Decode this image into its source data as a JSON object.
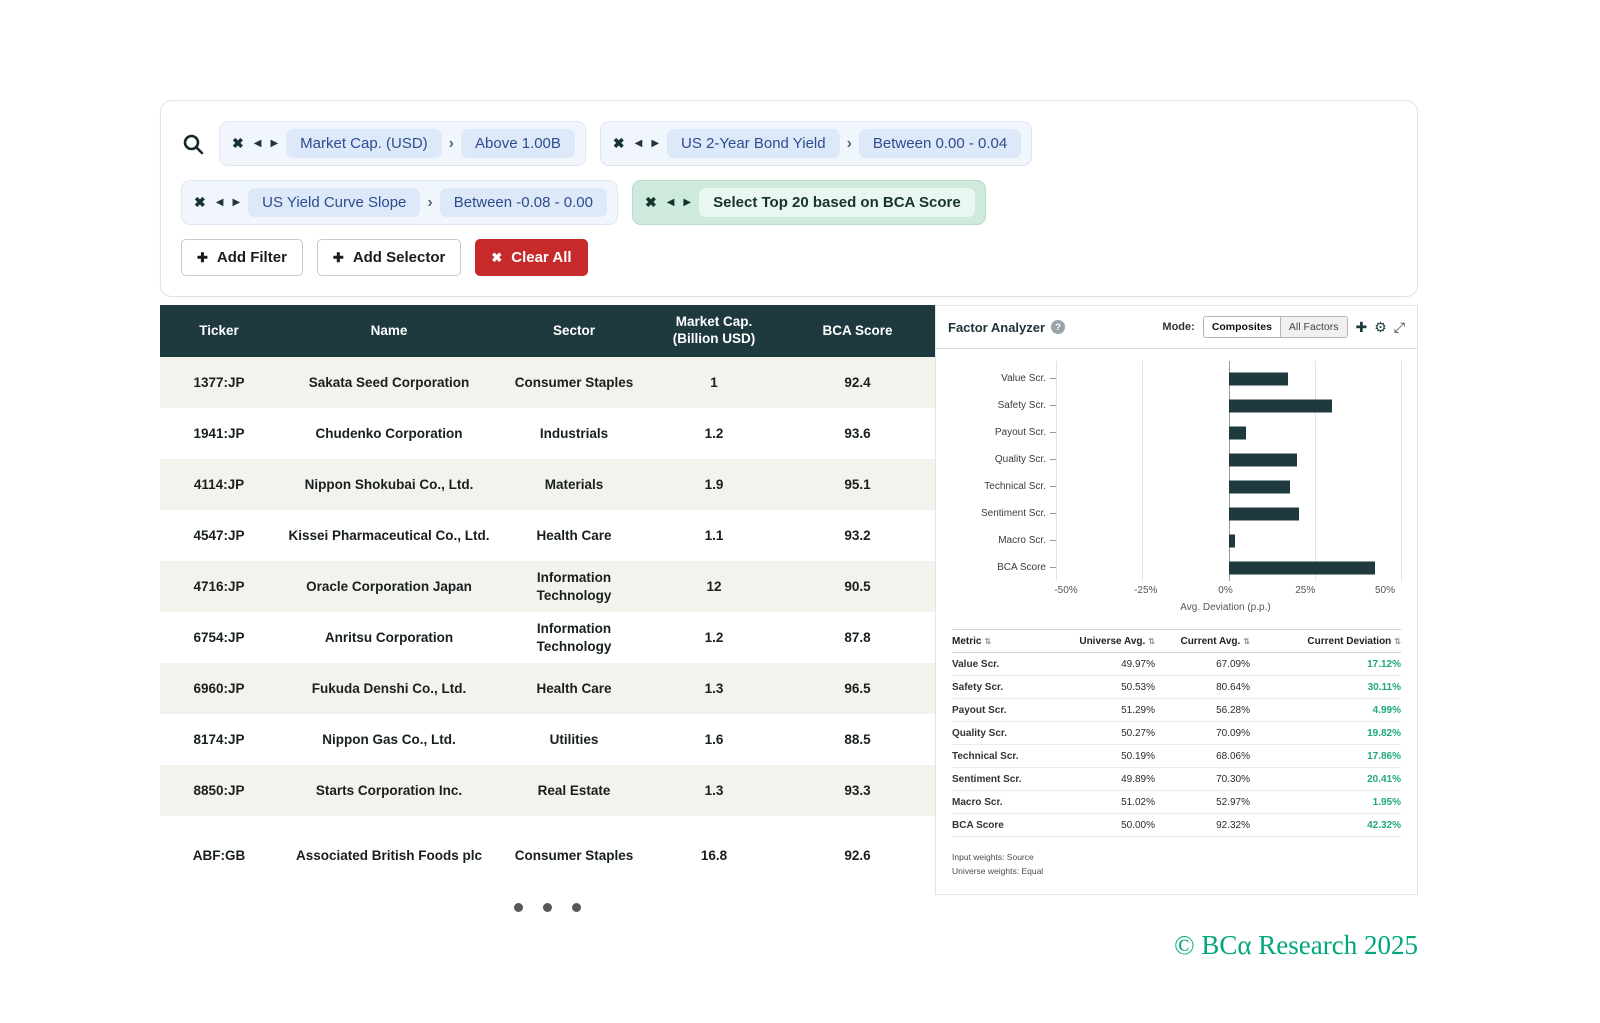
{
  "filters": {
    "chips": [
      {
        "field": "Market Cap. (USD)",
        "condition": "Above 1.00B"
      },
      {
        "field": "US 2-Year Bond Yield",
        "condition": "Between 0.00 - 0.04"
      },
      {
        "field": "US Yield Curve Slope",
        "condition": "Between -0.08 - 0.00"
      }
    ],
    "selector": {
      "label": "Select Top 20 based on BCA Score"
    },
    "add_filter_label": "Add Filter",
    "add_selector_label": "Add Selector",
    "clear_all_label": "Clear All"
  },
  "table": {
    "columns": [
      "Ticker",
      "Name",
      "Sector",
      "Market Cap.\n(Billion USD)",
      "BCA Score"
    ],
    "rows": [
      [
        "1377:JP",
        "Sakata Seed Corporation",
        "Consumer Staples",
        "1",
        "92.4"
      ],
      [
        "1941:JP",
        "Chudenko Corporation",
        "Industrials",
        "1.2",
        "93.6"
      ],
      [
        "4114:JP",
        "Nippon Shokubai Co., Ltd.",
        "Materials",
        "1.9",
        "95.1"
      ],
      [
        "4547:JP",
        "Kissei Pharmaceutical Co., Ltd.",
        "Health Care",
        "1.1",
        "93.2"
      ],
      [
        "4716:JP",
        "Oracle Corporation Japan",
        "Information Technology",
        "12",
        "90.5"
      ],
      [
        "6754:JP",
        "Anritsu Corporation",
        "Information Technology",
        "1.2",
        "87.8"
      ],
      [
        "6960:JP",
        "Fukuda Denshi Co., Ltd.",
        "Health Care",
        "1.3",
        "96.5"
      ],
      [
        "8174:JP",
        "Nippon Gas Co., Ltd.",
        "Utilities",
        "1.6",
        "88.5"
      ],
      [
        "8850:JP",
        "Starts Corporation Inc.",
        "Real Estate",
        "1.3",
        "93.3"
      ],
      [
        "ABF:GB",
        "Associated British Foods plc",
        "Consumer Staples",
        "16.8",
        "92.6"
      ]
    ]
  },
  "factor_analyzer": {
    "title": "Factor Analyzer",
    "mode_label": "Mode:",
    "modes": [
      "Composites",
      "All Factors"
    ],
    "active_mode": "Composites",
    "chart_data": {
      "type": "bar",
      "orientation": "horizontal",
      "categories": [
        "Value Scr.",
        "Safety Scr.",
        "Payout Scr.",
        "Quality Scr.",
        "Technical Scr.",
        "Sentiment Scr.",
        "Macro Scr.",
        "BCA Score"
      ],
      "values": [
        17.12,
        30.11,
        4.99,
        19.82,
        17.86,
        20.41,
        1.95,
        42.32
      ],
      "xlabel": "Avg. Deviation (p.p.)",
      "xlim": [
        -50,
        50
      ],
      "ticks": [
        "-50%",
        "-25%",
        "0%",
        "25%",
        "50%"
      ],
      "tick_positions": [
        0,
        25,
        50,
        75,
        100
      ],
      "bar_color": "#1e3a3f",
      "grid": true,
      "legend": false
    },
    "metrics": {
      "columns": [
        "Metric",
        "Universe Avg.",
        "Current Avg.",
        "Current Deviation"
      ],
      "rows": [
        [
          "Value Scr.",
          "49.97%",
          "67.09%",
          "17.12%"
        ],
        [
          "Safety Scr.",
          "50.53%",
          "80.64%",
          "30.11%"
        ],
        [
          "Payout Scr.",
          "51.29%",
          "56.28%",
          "4.99%"
        ],
        [
          "Quality Scr.",
          "50.27%",
          "70.09%",
          "19.82%"
        ],
        [
          "Technical Scr.",
          "50.19%",
          "68.06%",
          "17.86%"
        ],
        [
          "Sentiment Scr.",
          "49.89%",
          "70.30%",
          "20.41%"
        ],
        [
          "Macro Scr.",
          "51.02%",
          "52.97%",
          "1.95%"
        ],
        [
          "BCA Score",
          "50.00%",
          "92.32%",
          "42.32%"
        ]
      ]
    },
    "footnotes": [
      "Input weights: Source",
      "Universe weights: Equal"
    ]
  },
  "pagination": {
    "dot_count": 3
  },
  "footer": {
    "copyright": "© BCα Research 2025"
  },
  "colors": {
    "header_teal": "#1e3a3f",
    "deviation_green": "#1fa97d",
    "danger_red": "#c62a2a",
    "brand_green": "#00a77d",
    "stripe_beige": "#f4f2ec",
    "chip_blue_text": "#2d4d8f"
  }
}
